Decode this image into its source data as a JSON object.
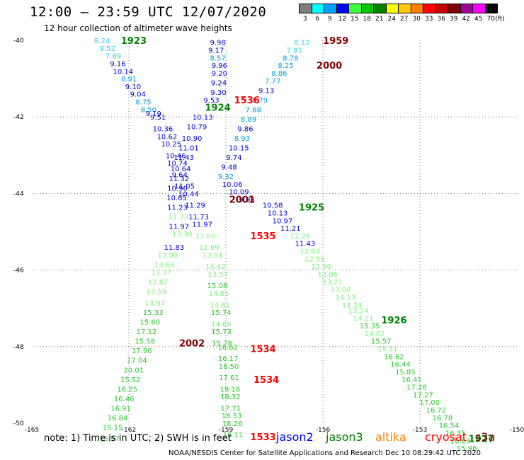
{
  "header": {
    "title": "12:00 – 23:59 UTC 12/07/2020",
    "subtitle": "12 hour collection of altimeter wave heights"
  },
  "legend": {
    "unit": "(ft)",
    "bins": [
      {
        "label": "3",
        "color": "#808080"
      },
      {
        "label": "6",
        "color": "#00ffff"
      },
      {
        "label": "9",
        "color": "#00a0ff"
      },
      {
        "label": "12",
        "color": "#0000ff"
      },
      {
        "label": "15",
        "color": "#40ff40"
      },
      {
        "label": "18",
        "color": "#00c800"
      },
      {
        "label": "21",
        "color": "#008000"
      },
      {
        "label": "24",
        "color": "#ffff00"
      },
      {
        "label": "27",
        "color": "#ffc800"
      },
      {
        "label": "30",
        "color": "#ff8000"
      },
      {
        "label": "33",
        "color": "#ff0000"
      },
      {
        "label": "36",
        "color": "#c80000"
      },
      {
        "label": "39",
        "color": "#800000"
      },
      {
        "label": "42",
        "color": "#a000a0"
      },
      {
        "label": "45",
        "color": "#ff00ff"
      },
      {
        "label": "70",
        "color": "#000000"
      }
    ]
  },
  "chart_data": {
    "type": "scatter",
    "title": "12:00 – 23:59 UTC 12/07/2020",
    "subtitle": "12 hour collection of altimeter wave heights",
    "xlim": [
      -165,
      -150
    ],
    "ylim": [
      -50,
      -40
    ],
    "x_ticks": [
      {
        "value": -165,
        "label": "-165"
      },
      {
        "value": -162,
        "label": "-162"
      },
      {
        "value": -159,
        "label": "-159"
      },
      {
        "value": -156,
        "label": "-156"
      },
      {
        "value": -153,
        "label": "-153"
      },
      {
        "value": -150,
        "label": "-150"
      }
    ],
    "y_ticks": [
      {
        "value": -40,
        "label": "-40"
      },
      {
        "value": -42,
        "label": "-42"
      },
      {
        "value": -44,
        "label": "-44"
      },
      {
        "value": -46,
        "label": "-46"
      },
      {
        "value": -48,
        "label": "-48"
      },
      {
        "value": -50,
        "label": "-50"
      }
    ],
    "grid": true,
    "colors": {
      "c3_6": "#30d0f0",
      "c6_9": "#00a0e0",
      "c9_12": "#0000d0",
      "c12_15": "#80f080",
      "c15_18": "#28c828",
      "jason2": "#0000ff",
      "jason3": "#008000",
      "altika": "#ff8000",
      "cryosat": "#ff0000",
      "s3a": "#800000"
    },
    "points": [
      {
        "x": -162.83,
        "y": -40.0,
        "v": "8.24",
        "c": "c3_6"
      },
      {
        "x": -162.66,
        "y": -40.2,
        "v": "8.52",
        "c": "c3_6"
      },
      {
        "x": -162.48,
        "y": -40.4,
        "v": "7.89",
        "c": "c3_6"
      },
      {
        "x": -162.34,
        "y": -40.6,
        "v": "9.16",
        "c": "c9_12"
      },
      {
        "x": -162.18,
        "y": -40.8,
        "v": "10.14",
        "c": "c9_12"
      },
      {
        "x": -162.0,
        "y": -41.0,
        "v": "8.91",
        "c": "c6_9"
      },
      {
        "x": -161.87,
        "y": -41.2,
        "v": "9.10",
        "c": "c9_12"
      },
      {
        "x": -161.72,
        "y": -41.4,
        "v": "9.04",
        "c": "c9_12"
      },
      {
        "x": -161.55,
        "y": -41.6,
        "v": "8.75",
        "c": "c6_9"
      },
      {
        "x": -161.39,
        "y": -41.8,
        "v": "8.50",
        "c": "c6_9"
      },
      {
        "x": -161.24,
        "y": -41.9,
        "v": "9.19",
        "c": "c9_12"
      },
      {
        "x": -161.1,
        "y": -42.0,
        "v": "9.51",
        "c": "c9_12"
      },
      {
        "x": -160.95,
        "y": -42.3,
        "v": "10.36",
        "c": "c9_12"
      },
      {
        "x": -160.82,
        "y": -42.5,
        "v": "10.62",
        "c": "c9_12"
      },
      {
        "x": -160.69,
        "y": -42.7,
        "v": "10.25",
        "c": "c9_12"
      },
      {
        "x": -160.55,
        "y": -43.0,
        "v": "10.46",
        "c": "c9_12"
      },
      {
        "x": -160.5,
        "y": -43.2,
        "v": "10.74",
        "c": "c9_12"
      },
      {
        "x": -160.43,
        "y": -43.5,
        "v": "9.64",
        "c": "c9_12"
      },
      {
        "x": -160.28,
        "y": -43.8,
        "v": "11.05",
        "c": "c9_12"
      },
      {
        "x": -160.15,
        "y": -44.0,
        "v": "10.44",
        "c": "c9_12"
      },
      {
        "x": -159.95,
        "y": -44.3,
        "v": "11.29",
        "c": "c9_12"
      },
      {
        "x": -159.84,
        "y": -44.6,
        "v": "11.73",
        "c": "c9_12"
      },
      {
        "x": -159.73,
        "y": -44.8,
        "v": "11.97",
        "c": "c9_12"
      },
      {
        "x": -159.64,
        "y": -45.1,
        "v": "13.69",
        "c": "c12_15"
      },
      {
        "x": -159.52,
        "y": -45.4,
        "v": "12.69",
        "c": "c12_15"
      },
      {
        "x": -159.41,
        "y": -45.6,
        "v": "13.91",
        "c": "c12_15"
      },
      {
        "x": -159.32,
        "y": -45.9,
        "v": "14.42",
        "c": "c12_15"
      },
      {
        "x": -159.25,
        "y": -46.1,
        "v": "13.57",
        "c": "c12_15"
      },
      {
        "x": -159.26,
        "y": -46.4,
        "v": "15.06",
        "c": "c15_18"
      },
      {
        "x": -159.22,
        "y": -46.6,
        "v": "14.85",
        "c": "c12_15"
      },
      {
        "x": -159.18,
        "y": -46.9,
        "v": "14.81",
        "c": "c12_15"
      },
      {
        "x": -159.15,
        "y": -47.1,
        "v": "15.74",
        "c": "c15_18"
      },
      {
        "x": -159.15,
        "y": -47.4,
        "v": "14.69",
        "c": "c12_15"
      },
      {
        "x": -159.14,
        "y": -47.6,
        "v": "15.73",
        "c": "c15_18"
      },
      {
        "x": -159.12,
        "y": -47.9,
        "v": "15.78",
        "c": "c15_18"
      },
      {
        "x": -158.94,
        "y": -48.0,
        "v": "16.62",
        "c": "c15_18"
      },
      {
        "x": -158.93,
        "y": -48.3,
        "v": "16.17",
        "c": "c15_18"
      },
      {
        "x": -158.91,
        "y": -48.5,
        "v": "16.50",
        "c": "c15_18"
      },
      {
        "x": -158.9,
        "y": -48.8,
        "v": "17.61",
        "c": "c15_18"
      },
      {
        "x": -158.87,
        "y": -49.1,
        "v": "19.18",
        "c": "c15_18"
      },
      {
        "x": -158.86,
        "y": -49.3,
        "v": "18.32",
        "c": "c15_18"
      },
      {
        "x": -158.85,
        "y": -49.6,
        "v": "17.71",
        "c": "c15_18"
      },
      {
        "x": -158.82,
        "y": -49.8,
        "v": "18.53",
        "c": "c15_18"
      },
      {
        "x": -158.8,
        "y": -50.0,
        "v": "18.26",
        "c": "c15_18"
      },
      {
        "x": -158.78,
        "y": -50.3,
        "v": "19.11",
        "c": "c15_18"
      },
      {
        "x": -159.25,
        "y": -40.05,
        "v": "9.98",
        "c": "c9_12"
      },
      {
        "x": -159.3,
        "y": -40.25,
        "v": "9.17",
        "c": "c9_12"
      },
      {
        "x": -159.25,
        "y": -40.45,
        "v": "8.57",
        "c": "c6_9"
      },
      {
        "x": -159.2,
        "y": -40.65,
        "v": "9.96",
        "c": "c9_12"
      },
      {
        "x": -159.2,
        "y": -40.85,
        "v": "9.20",
        "c": "c9_12"
      },
      {
        "x": -159.22,
        "y": -41.1,
        "v": "9.24",
        "c": "c9_12"
      },
      {
        "x": -159.23,
        "y": -41.35,
        "v": "9.30",
        "c": "c9_12"
      },
      {
        "x": -159.45,
        "y": -41.55,
        "v": "9.53",
        "c": "c9_12"
      },
      {
        "x": -159.72,
        "y": -42.0,
        "v": "10.13",
        "c": "c9_12"
      },
      {
        "x": -159.9,
        "y": -42.25,
        "v": "10.79",
        "c": "c9_12"
      },
      {
        "x": -160.05,
        "y": -42.55,
        "v": "10.90",
        "c": "c9_12"
      },
      {
        "x": -160.15,
        "y": -42.8,
        "v": "11.01",
        "c": "c9_12"
      },
      {
        "x": -160.3,
        "y": -43.05,
        "v": "11.43",
        "c": "c9_12"
      },
      {
        "x": -160.4,
        "y": -43.35,
        "v": "10.64",
        "c": "c9_12"
      },
      {
        "x": -160.45,
        "y": -43.6,
        "v": "11.32",
        "c": "c9_12"
      },
      {
        "x": -160.5,
        "y": -43.85,
        "v": "10.90",
        "c": "c9_12"
      },
      {
        "x": -160.52,
        "y": -44.1,
        "v": "10.65",
        "c": "c9_12"
      },
      {
        "x": -160.5,
        "y": -44.35,
        "v": "11.23",
        "c": "c9_12"
      },
      {
        "x": -160.47,
        "y": -44.6,
        "v": "11.73",
        "c": "c12_15"
      },
      {
        "x": -160.45,
        "y": -44.85,
        "v": "11.97",
        "c": "c9_12"
      },
      {
        "x": -160.35,
        "y": -45.05,
        "v": "13.38",
        "c": "c12_15"
      },
      {
        "x": -160.6,
        "y": -45.4,
        "v": "11.83",
        "c": "c9_12"
      },
      {
        "x": -160.8,
        "y": -45.6,
        "v": "13.00",
        "c": "c12_15"
      },
      {
        "x": -160.9,
        "y": -45.85,
        "v": "13.66",
        "c": "c12_15"
      },
      {
        "x": -161.0,
        "y": -46.05,
        "v": "13.37",
        "c": "c12_15"
      },
      {
        "x": -161.1,
        "y": -46.3,
        "v": "12.67",
        "c": "c12_15"
      },
      {
        "x": -161.15,
        "y": -46.55,
        "v": "13.59",
        "c": "c12_15"
      },
      {
        "x": -161.2,
        "y": -46.85,
        "v": "13.93",
        "c": "c12_15"
      },
      {
        "x": -161.25,
        "y": -47.1,
        "v": "15.33",
        "c": "c15_18"
      },
      {
        "x": -161.35,
        "y": -47.35,
        "v": "15.60",
        "c": "c15_18"
      },
      {
        "x": -161.45,
        "y": -47.6,
        "v": "17.12",
        "c": "c15_18"
      },
      {
        "x": -161.5,
        "y": -47.85,
        "v": "15.58",
        "c": "c15_18"
      },
      {
        "x": -161.6,
        "y": -48.1,
        "v": "17.96",
        "c": "c15_18"
      },
      {
        "x": -161.75,
        "y": -48.35,
        "v": "17.04",
        "c": "c15_18"
      },
      {
        "x": -161.85,
        "y": -48.6,
        "v": "20.01",
        "c": "c15_18"
      },
      {
        "x": -161.95,
        "y": -48.85,
        "v": "15.52",
        "c": "c15_18"
      },
      {
        "x": -162.05,
        "y": -49.1,
        "v": "16.25",
        "c": "c15_18"
      },
      {
        "x": -162.15,
        "y": -49.35,
        "v": "16.46",
        "c": "c15_18"
      },
      {
        "x": -162.25,
        "y": -49.6,
        "v": "16.91",
        "c": "c15_18"
      },
      {
        "x": -162.35,
        "y": -49.85,
        "v": "16.84",
        "c": "c15_18"
      },
      {
        "x": -162.5,
        "y": -50.1,
        "v": "15.15",
        "c": "c15_18"
      },
      {
        "x": -162.6,
        "y": -50.4,
        "v": "15.57",
        "c": "c15_18"
      },
      {
        "x": -156.65,
        "y": -40.05,
        "v": "8.12",
        "c": "c3_6"
      },
      {
        "x": -156.88,
        "y": -40.25,
        "v": "7.91",
        "c": "c3_6"
      },
      {
        "x": -157.0,
        "y": -40.45,
        "v": "8.78",
        "c": "c6_9"
      },
      {
        "x": -157.15,
        "y": -40.65,
        "v": "8.25",
        "c": "c6_9"
      },
      {
        "x": -157.35,
        "y": -40.85,
        "v": "8.86",
        "c": "c6_9"
      },
      {
        "x": -157.55,
        "y": -41.05,
        "v": "7.77",
        "c": "c6_9"
      },
      {
        "x": -157.75,
        "y": -41.3,
        "v": "9.13",
        "c": "c9_12"
      },
      {
        "x": -157.95,
        "y": -41.55,
        "v": "8.79",
        "c": "c6_9"
      },
      {
        "x": -158.15,
        "y": -41.8,
        "v": "7.88",
        "c": "c6_9"
      },
      {
        "x": -158.3,
        "y": -42.05,
        "v": "8.89",
        "c": "c6_9"
      },
      {
        "x": -158.4,
        "y": -42.3,
        "v": "9.86",
        "c": "c9_12"
      },
      {
        "x": -158.5,
        "y": -42.55,
        "v": "8.93",
        "c": "c6_9"
      },
      {
        "x": -158.6,
        "y": -42.8,
        "v": "10.15",
        "c": "c9_12"
      },
      {
        "x": -158.75,
        "y": -43.05,
        "v": "9.74",
        "c": "c9_12"
      },
      {
        "x": -158.9,
        "y": -43.3,
        "v": "9.48",
        "c": "c9_12"
      },
      {
        "x": -159.0,
        "y": -43.55,
        "v": "9.32",
        "c": "c6_9"
      },
      {
        "x": -158.8,
        "y": -43.75,
        "v": "10.06",
        "c": "c9_12"
      },
      {
        "x": -158.6,
        "y": -43.95,
        "v": "10.09",
        "c": "c9_12"
      },
      {
        "x": -158.35,
        "y": -44.15,
        "v": "9.98",
        "c": "c9_12"
      },
      {
        "x": -157.55,
        "y": -44.3,
        "v": "10.58",
        "c": "c9_12"
      },
      {
        "x": -157.4,
        "y": -44.5,
        "v": "10.13",
        "c": "c9_12"
      },
      {
        "x": -157.25,
        "y": -44.7,
        "v": "10.97",
        "c": "c9_12"
      },
      {
        "x": -157.0,
        "y": -44.9,
        "v": "11.21",
        "c": "c9_12"
      },
      {
        "x": -156.7,
        "y": -45.1,
        "v": "12.26",
        "c": "c12_15"
      },
      {
        "x": -156.55,
        "y": -45.3,
        "v": "11.43",
        "c": "c9_12"
      },
      {
        "x": -156.4,
        "y": -45.5,
        "v": "12.04",
        "c": "c12_15"
      },
      {
        "x": -156.25,
        "y": -45.7,
        "v": "12.56",
        "c": "c12_15"
      },
      {
        "x": -156.05,
        "y": -45.9,
        "v": "12.90",
        "c": "c12_15"
      },
      {
        "x": -155.85,
        "y": -46.1,
        "v": "13.06",
        "c": "c12_15"
      },
      {
        "x": -155.7,
        "y": -46.3,
        "v": "13.21",
        "c": "c12_15"
      },
      {
        "x": -155.45,
        "y": -46.5,
        "v": "13.00",
        "c": "c12_15"
      },
      {
        "x": -155.3,
        "y": -46.7,
        "v": "14.13",
        "c": "c12_15"
      },
      {
        "x": -155.1,
        "y": -46.9,
        "v": "14.24",
        "c": "c12_15"
      },
      {
        "x": -154.9,
        "y": -47.05,
        "v": "13.24",
        "c": "c12_15"
      },
      {
        "x": -154.75,
        "y": -47.25,
        "v": "14.21",
        "c": "c12_15"
      },
      {
        "x": -154.55,
        "y": -47.45,
        "v": "15.35",
        "c": "c15_18"
      },
      {
        "x": -154.4,
        "y": -47.65,
        "v": "14.62",
        "c": "c12_15"
      },
      {
        "x": -154.2,
        "y": -47.85,
        "v": "15.57",
        "c": "c15_18"
      },
      {
        "x": -154.0,
        "y": -48.05,
        "v": "14.31",
        "c": "c12_15"
      },
      {
        "x": -153.8,
        "y": -48.25,
        "v": "16.62",
        "c": "c15_18"
      },
      {
        "x": -153.6,
        "y": -48.45,
        "v": "16.44",
        "c": "c15_18"
      },
      {
        "x": -153.45,
        "y": -48.65,
        "v": "15.85",
        "c": "c15_18"
      },
      {
        "x": -153.25,
        "y": -48.85,
        "v": "16.41",
        "c": "c15_18"
      },
      {
        "x": -153.1,
        "y": -49.05,
        "v": "17.28",
        "c": "c15_18"
      },
      {
        "x": -152.9,
        "y": -49.25,
        "v": "17.27",
        "c": "c15_18"
      },
      {
        "x": -152.7,
        "y": -49.45,
        "v": "17.00",
        "c": "c15_18"
      },
      {
        "x": -152.5,
        "y": -49.65,
        "v": "16.72",
        "c": "c15_18"
      },
      {
        "x": -152.3,
        "y": -49.85,
        "v": "16.78",
        "c": "c15_18"
      },
      {
        "x": -152.1,
        "y": -50.05,
        "v": "16.54",
        "c": "c15_18"
      },
      {
        "x": -151.9,
        "y": -50.25,
        "v": "16.35",
        "c": "c15_18"
      },
      {
        "x": -151.75,
        "y": -50.45,
        "v": "16.63",
        "c": "c15_18"
      },
      {
        "x": -151.55,
        "y": -50.65,
        "v": "15.96",
        "c": "c15_18"
      }
    ],
    "time_labels": [
      {
        "x": -161.85,
        "y": -40.0,
        "text": "1923",
        "c": "jason3"
      },
      {
        "x": -155.6,
        "y": -40.0,
        "text": "1959",
        "c": "s3a"
      },
      {
        "x": -155.8,
        "y": -40.65,
        "text": "2000",
        "c": "s3a"
      },
      {
        "x": -158.35,
        "y": -41.55,
        "text": "1536",
        "c": "cryosat"
      },
      {
        "x": -159.25,
        "y": -41.75,
        "text": "1924",
        "c": "jason3"
      },
      {
        "x": -158.5,
        "y": -44.15,
        "text": "2001",
        "c": "s3a"
      },
      {
        "x": -156.35,
        "y": -44.35,
        "text": "1925",
        "c": "jason3"
      },
      {
        "x": -157.85,
        "y": -45.1,
        "text": "1535",
        "c": "cryosat"
      },
      {
        "x": -153.8,
        "y": -47.3,
        "text": "1926",
        "c": "jason3"
      },
      {
        "x": -160.05,
        "y": -47.9,
        "text": "2002",
        "c": "s3a"
      },
      {
        "x": -157.85,
        "y": -48.05,
        "text": "1534",
        "c": "cryosat"
      },
      {
        "x": -157.75,
        "y": -48.85,
        "text": "1534",
        "c": "cryosat"
      },
      {
        "x": -151.1,
        "y": -50.4,
        "text": "1927",
        "c": "jason3"
      },
      {
        "x": -157.85,
        "y": -50.35,
        "text": "1533",
        "c": "cryosat"
      }
    ]
  },
  "footer": {
    "note": "note:  1) Time is in UTC;  2) SWH is in feet",
    "satellites": [
      {
        "name": "jason2",
        "color": "#0000ff"
      },
      {
        "name": "jason3",
        "color": "#008000"
      },
      {
        "name": "altika",
        "color": "#ff8000"
      },
      {
        "name": "cryosat",
        "color": "#ff0000"
      },
      {
        "name": "s3a",
        "color": "#800000"
      }
    ],
    "credit": "NOAA/NESDIS Center for Satellite Applications and Research     Dec 10 08:29:42 UTC 2020"
  }
}
